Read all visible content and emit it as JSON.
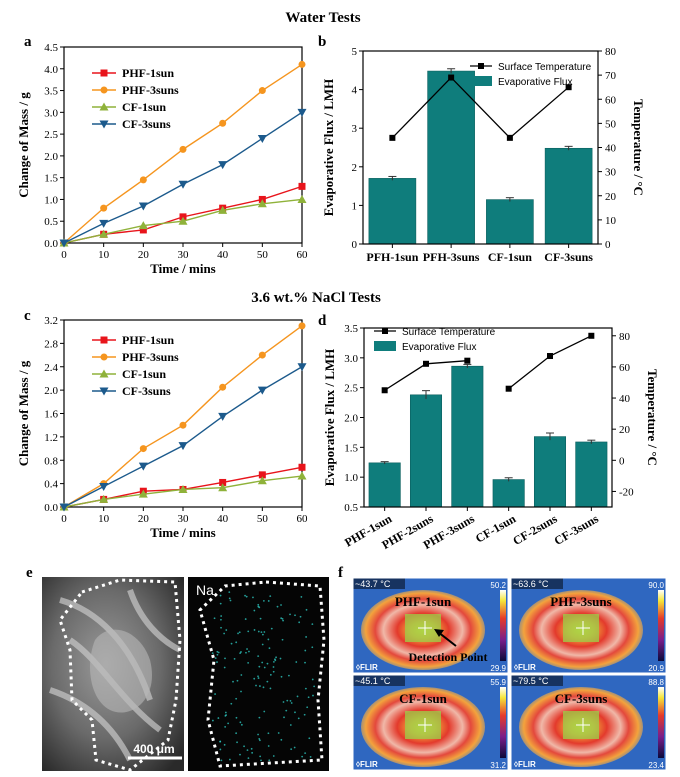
{
  "section_titles": {
    "water": "Water Tests",
    "nacl": "3.6 wt.% NaCl Tests"
  },
  "panel_letters": {
    "a": "a",
    "b": "b",
    "c": "c",
    "d": "d",
    "e": "e",
    "f": "f"
  },
  "colors": {
    "PHF-1sun": "#e8141b",
    "PHF-3suns": "#f5951f",
    "CF-1sun": "#8fb23a",
    "CF-3suns": "#1c5a8c",
    "bar": "#0f7d7c",
    "temp": "#000000"
  },
  "chart_data": [
    {
      "id": "a",
      "type": "line",
      "xlabel": "Time / mins",
      "ylabel": "Change of Mass / g",
      "xlim": [
        0,
        60
      ],
      "ylim": [
        0,
        4.5
      ],
      "xticks": [
        "0",
        "10",
        "20",
        "30",
        "40",
        "50",
        "60"
      ],
      "yticks": [
        "0.0",
        "0.5",
        "1.0",
        "1.5",
        "2.0",
        "2.5",
        "3.0",
        "3.5",
        "4.0",
        "4.5"
      ],
      "x": [
        0,
        10,
        20,
        30,
        40,
        50,
        60
      ],
      "legend": "top-left",
      "series": [
        {
          "name": "PHF-1sun",
          "marker": "square",
          "values": [
            0,
            0.2,
            0.3,
            0.6,
            0.8,
            1.0,
            1.3
          ]
        },
        {
          "name": "PHF-3suns",
          "marker": "circle",
          "values": [
            0,
            0.8,
            1.45,
            2.15,
            2.75,
            3.5,
            4.1
          ]
        },
        {
          "name": "CF-1sun",
          "marker": "triangle-up",
          "values": [
            0,
            0.2,
            0.4,
            0.5,
            0.75,
            0.9,
            1.0
          ]
        },
        {
          "name": "CF-3suns",
          "marker": "triangle-down",
          "values": [
            0,
            0.45,
            0.85,
            1.35,
            1.8,
            2.4,
            3.0
          ]
        }
      ]
    },
    {
      "id": "b",
      "type": "bar",
      "ylabel": "Evaporative Flux / LMH",
      "y2label": "Temperature / °C",
      "categories": [
        "PFH-1sun",
        "PFH-3suns",
        "CF-1sun",
        "CF-3suns"
      ],
      "ylim": [
        0,
        5
      ],
      "y2lim": [
        0,
        80
      ],
      "y2ticks": [
        "0",
        "10",
        "20",
        "30",
        "40",
        "50",
        "60",
        "70",
        "80"
      ],
      "legend": "top-center",
      "series": [
        {
          "name": "Evaporative Flux",
          "kind": "bar",
          "values": [
            1.7,
            4.48,
            1.15,
            2.48
          ],
          "errors": [
            0.05,
            0.06,
            0.05,
            0.05
          ]
        },
        {
          "name": "Surface Temperature",
          "kind": "line",
          "axis": "right",
          "values": [
            44,
            69,
            44,
            65
          ]
        }
      ]
    },
    {
      "id": "c",
      "type": "line",
      "xlabel": "Time / mins",
      "ylabel": "Change of Mass / g",
      "xlim": [
        0,
        60
      ],
      "ylim": [
        0,
        3.2
      ],
      "xticks": [
        "0",
        "10",
        "20",
        "30",
        "40",
        "50",
        "60"
      ],
      "yticks": [
        "0.0",
        "0.4",
        "0.8",
        "1.2",
        "1.6",
        "2.0",
        "2.4",
        "2.8",
        "3.2"
      ],
      "x": [
        0,
        10,
        20,
        30,
        40,
        50,
        60
      ],
      "legend": "top-left",
      "series": [
        {
          "name": "PHF-1sun",
          "marker": "square",
          "values": [
            0,
            0.13,
            0.27,
            0.3,
            0.42,
            0.55,
            0.68
          ]
        },
        {
          "name": "PHF-3suns",
          "marker": "circle",
          "values": [
            0,
            0.4,
            1.0,
            1.4,
            2.05,
            2.6,
            3.1
          ]
        },
        {
          "name": "CF-1sun",
          "marker": "triangle-up",
          "values": [
            0,
            0.13,
            0.22,
            0.3,
            0.33,
            0.45,
            0.53
          ]
        },
        {
          "name": "CF-3suns",
          "marker": "triangle-down",
          "values": [
            0,
            0.35,
            0.7,
            1.05,
            1.55,
            2.0,
            2.4
          ]
        }
      ]
    },
    {
      "id": "d",
      "type": "bar",
      "ylabel": "Evaporative Flux / LMH",
      "y2label": "Temperature / °C",
      "categories": [
        "PHF-1sun",
        "PHF-2suns",
        "PHF-3suns",
        "CF-1sun",
        "CF-2suns",
        "CF-3suns"
      ],
      "ylim": [
        0.5,
        3.5
      ],
      "y2lim": [
        -30,
        85
      ],
      "yticks": [
        "0.5",
        "1.0",
        "1.5",
        "2.0",
        "2.5",
        "3.0",
        "3.5"
      ],
      "y2ticks": [
        "-20",
        "0",
        "20",
        "40",
        "60",
        "80"
      ],
      "legend": "top-left",
      "series": [
        {
          "name": "Evaporative Flux",
          "kind": "bar",
          "values": [
            1.24,
            2.38,
            2.86,
            0.96,
            1.68,
            1.59
          ],
          "errors": [
            0.02,
            0.07,
            0.03,
            0.03,
            0.06,
            0.03
          ]
        },
        {
          "name": "Surface Temperature",
          "kind": "line",
          "axis": "right",
          "values": [
            45,
            62,
            64,
            46,
            67,
            80
          ],
          "segments": [
            [
              0,
              2
            ],
            [
              3,
              5
            ]
          ]
        }
      ]
    }
  ],
  "images": {
    "e": {
      "scale_bar": "400 μm",
      "element_map": "Na"
    },
    "f": {
      "panels": [
        {
          "name": "PHF-1sun",
          "max_temp": "43.7",
          "unit": "°C",
          "top": "50.2",
          "bottom": "29.9",
          "brand": "FLIR"
        },
        {
          "name": "PHF-3suns",
          "max_temp": "63.6",
          "unit": "°C",
          "top": "90.0",
          "bottom": "20.9",
          "brand": "FLIR"
        },
        {
          "name": "CF-1sun",
          "max_temp": "45.1",
          "unit": "°C",
          "top": "55.9",
          "bottom": "31.2",
          "brand": "FLIR"
        },
        {
          "name": "CF-3suns",
          "max_temp": "79.5",
          "unit": "°C",
          "top": "88.8",
          "bottom": "23.4",
          "brand": "FLIR"
        }
      ],
      "annotation": "Detection Point"
    }
  }
}
